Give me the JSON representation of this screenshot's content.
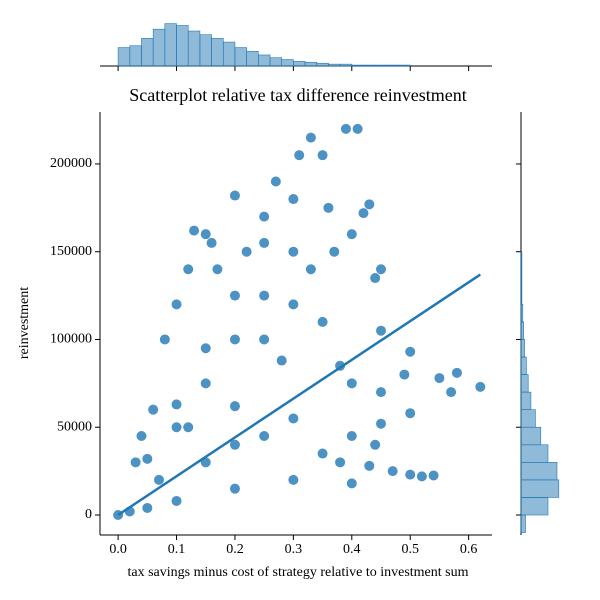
{
  "chart_data": {
    "type": "scatter",
    "title": "Scatterplot relative tax difference reinvestment",
    "xlabel": "tax savings minus cost of strategy relative to investment sum",
    "ylabel": "reinvestment",
    "color": "#1f77b4",
    "x": [
      0.39,
      0.41,
      0.35,
      0.3,
      0.25,
      0.2,
      0.15,
      0.1,
      0.05,
      0.36,
      0.3,
      0.25,
      0.2,
      0.15,
      0.1,
      0.2,
      0.15,
      0.13,
      0.43,
      0.42,
      0.4,
      0.45,
      0.44,
      0.35,
      0.28,
      0.2,
      0.45,
      0.38,
      0.5,
      0.4,
      0.3,
      0.49,
      0.45,
      0.5,
      0.45,
      0.4,
      0.55,
      0.57,
      0.58,
      0.62,
      0.5,
      0.52,
      0.54,
      0.47,
      0.43,
      0.38,
      0.3,
      0.2,
      0.1,
      0.05,
      0,
      0.02,
      0.35,
      0.4,
      0.44,
      0.1,
      0.08,
      0.12,
      0.17,
      0.16,
      0.22,
      0.25,
      0.27,
      0.33,
      0.31,
      0.25,
      0.3,
      0.33,
      0.37,
      0.06,
      0.04,
      0.03,
      0.07,
      0.15,
      0.25,
      0.2,
      0.12
    ],
    "y": [
      220000,
      220000,
      205000,
      180000,
      155000,
      125000,
      95000,
      63000,
      32000,
      175000,
      150000,
      125000,
      100000,
      75000,
      50000,
      182000,
      160000,
      162000,
      177000,
      172000,
      160000,
      140000,
      135000,
      110000,
      88000,
      62000,
      105000,
      85000,
      93000,
      75000,
      55000,
      80000,
      70000,
      58000,
      52000,
      45000,
      78000,
      70000,
      81000,
      73000,
      23000,
      22000,
      22500,
      25000,
      28000,
      30000,
      20000,
      15000,
      8000,
      4000,
      0,
      2000,
      35000,
      18000,
      40000,
      120000,
      100000,
      140000,
      140000,
      155000,
      150000,
      170000,
      190000,
      215000,
      205000,
      100000,
      120000,
      140000,
      150000,
      60000,
      45000,
      30000,
      20000,
      30000,
      45000,
      40000,
      50000
    ],
    "xlim": [
      -0.031,
      0.64
    ],
    "ylim": [
      -11400,
      229600
    ],
    "xticks": [
      {
        "value": 0,
        "label": "0.0"
      },
      {
        "value": 0.1,
        "label": "0.1"
      },
      {
        "value": 0.2,
        "label": "0.2"
      },
      {
        "value": 0.3,
        "label": "0.3"
      },
      {
        "value": 0.4,
        "label": "0.4"
      },
      {
        "value": 0.5,
        "label": "0.5"
      },
      {
        "value": 0.6,
        "label": "0.6"
      }
    ],
    "yticks": [
      0,
      50000,
      100000,
      150000,
      200000
    ],
    "regression": {
      "x": [
        0,
        0.62
      ],
      "y": [
        0,
        137000
      ]
    },
    "marginal_x": {
      "bins": [
        0,
        0.02,
        0.04,
        0.06,
        0.08,
        0.1,
        0.12,
        0.14,
        0.16,
        0.18,
        0.2,
        0.22,
        0.24,
        0.26,
        0.28,
        0.3,
        0.32,
        0.34,
        0.36,
        0.38,
        0.4,
        0.42,
        0.44,
        0.46,
        0.48,
        0.5,
        0.52,
        0.54,
        0.56,
        0.58,
        0.6,
        0.62
      ],
      "counts": [
        20,
        22,
        30,
        40,
        46,
        44,
        38,
        34,
        30,
        26,
        20,
        16,
        12,
        9,
        7,
        5,
        4,
        3,
        2,
        2,
        1,
        1,
        1,
        1,
        1,
        0,
        0,
        0,
        0,
        0,
        0
      ],
      "countlim": [
        0,
        50
      ]
    },
    "marginal_y": {
      "bins": [
        -10000,
        0,
        10000,
        20000,
        30000,
        40000,
        50000,
        60000,
        70000,
        80000,
        90000,
        100000,
        110000,
        120000,
        130000,
        140000,
        150000,
        160000
      ],
      "counts": [
        5,
        30,
        42,
        40,
        30,
        22,
        16,
        11,
        8,
        6,
        4,
        3,
        2,
        1,
        1,
        1,
        0
      ],
      "countlim": [
        0,
        50
      ]
    }
  }
}
